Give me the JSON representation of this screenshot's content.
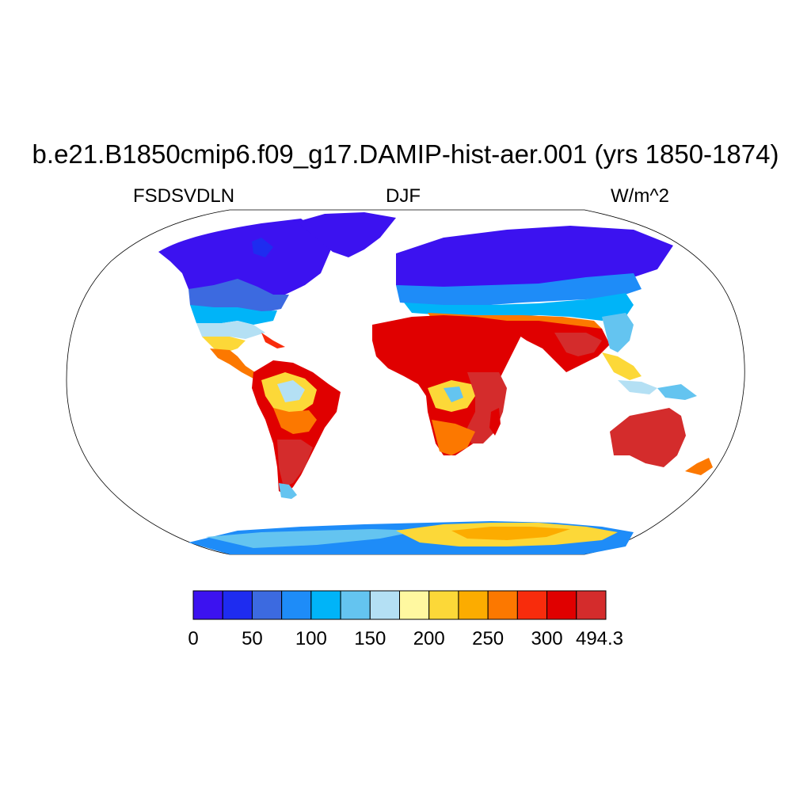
{
  "title": "b.e21.B1850cmip6.f09_g17.DAMIP-hist-aer.001 (yrs 1850-1874)",
  "left_label": "FSDSVDLN",
  "center_label": "DJF",
  "right_label": "W/m^2",
  "colorbar": {
    "labels": [
      "0",
      "50",
      "100",
      "150",
      "200",
      "250",
      "300",
      "494.3"
    ],
    "colors": [
      "#3c12f0",
      "#1e2cf0",
      "#3c6ae0",
      "#1e8cf8",
      "#00b4f8",
      "#64c4f0",
      "#b4e0f4",
      "#fff8a0",
      "#fcd838",
      "#fcac00",
      "#fc7800",
      "#f82c0c",
      "#e00000",
      "#d42c2c"
    ]
  },
  "map": {
    "projection": "Robinson",
    "ocean_color": "#ffffff",
    "region_values": [
      {
        "region": "Arctic North America / Greenland",
        "range": "0-25"
      },
      {
        "region": "Siberia / Northern Eurasia",
        "range": "0-25"
      },
      {
        "region": "Sahara / Arabia / India",
        "range": "300-494.3"
      },
      {
        "region": "Southern Africa",
        "range": "300-494.3"
      },
      {
        "region": "Australia",
        "range": "300-494.3"
      },
      {
        "region": "South America (south)",
        "range": "300-494.3"
      },
      {
        "region": "Antarctic interior",
        "range": "200-275"
      },
      {
        "region": "Antarctic coast",
        "range": "75-175"
      }
    ]
  }
}
